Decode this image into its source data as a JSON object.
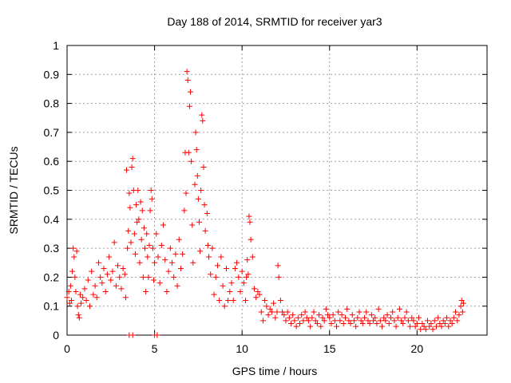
{
  "chart_data": {
    "type": "scatter",
    "title": "Day 188 of 2014, SRMTID for receiver yar3",
    "xlabel": "GPS time / hours",
    "ylabel": "SRMTID / TECUs",
    "xlim": [
      0,
      24
    ],
    "ylim": [
      0,
      1
    ],
    "xticks": [
      0,
      5,
      10,
      15,
      20
    ],
    "xtick_labels": [
      "0",
      "5",
      "10",
      "15",
      "20"
    ],
    "yticks": [
      0,
      0.1,
      0.2,
      0.3,
      0.4,
      0.5,
      0.6,
      0.7,
      0.8,
      0.9,
      1
    ],
    "ytick_labels": [
      "0",
      "0.1",
      "0.2",
      "0.3",
      "0.4",
      "0.5",
      "0.6",
      "0.7",
      "0.8",
      "0.9",
      "1"
    ],
    "grid": true,
    "marker": "+",
    "color": "#ff0000",
    "series": [
      {
        "name": "SRMTID",
        "points": [
          [
            0.0,
            0.13
          ],
          [
            0.1,
            0.15
          ],
          [
            0.15,
            0.11
          ],
          [
            0.2,
            0.17
          ],
          [
            0.25,
            0.12
          ],
          [
            0.3,
            0.22
          ],
          [
            0.35,
            0.3
          ],
          [
            0.4,
            0.27
          ],
          [
            0.45,
            0.2
          ],
          [
            0.5,
            0.15
          ],
          [
            0.55,
            0.29
          ],
          [
            0.6,
            0.1
          ],
          [
            0.65,
            0.07
          ],
          [
            0.7,
            0.06
          ],
          [
            0.75,
            0.14
          ],
          [
            0.8,
            0.11
          ],
          [
            0.9,
            0.13
          ],
          [
            1.0,
            0.16
          ],
          [
            1.1,
            0.12
          ],
          [
            1.2,
            0.19
          ],
          [
            1.3,
            0.1
          ],
          [
            1.4,
            0.22
          ],
          [
            1.5,
            0.14
          ],
          [
            1.6,
            0.17
          ],
          [
            1.7,
            0.13
          ],
          [
            1.8,
            0.25
          ],
          [
            1.9,
            0.2
          ],
          [
            2.0,
            0.18
          ],
          [
            2.1,
            0.23
          ],
          [
            2.2,
            0.15
          ],
          [
            2.3,
            0.21
          ],
          [
            2.4,
            0.27
          ],
          [
            2.5,
            0.19
          ],
          [
            2.6,
            0.22
          ],
          [
            2.7,
            0.32
          ],
          [
            2.8,
            0.17
          ],
          [
            2.9,
            0.24
          ],
          [
            3.0,
            0.2
          ],
          [
            3.1,
            0.16
          ],
          [
            3.2,
            0.23
          ],
          [
            3.3,
            0.21
          ],
          [
            3.35,
            0.13
          ],
          [
            3.4,
            0.57
          ],
          [
            3.45,
            0.3
          ],
          [
            3.5,
            0.36
          ],
          [
            3.55,
            0.49
          ],
          [
            3.6,
            0.44
          ],
          [
            3.65,
            0.32
          ],
          [
            3.7,
            0.58
          ],
          [
            3.75,
            0.61
          ],
          [
            3.8,
            0.5
          ],
          [
            3.85,
            0.35
          ],
          [
            3.9,
            0.28
          ],
          [
            3.95,
            0.45
          ],
          [
            4.0,
            0.39
          ],
          [
            4.05,
            0.5
          ],
          [
            4.1,
            0.4
          ],
          [
            4.15,
            0.25
          ],
          [
            4.2,
            0.46
          ],
          [
            4.25,
            0.33
          ],
          [
            4.3,
            0.43
          ],
          [
            4.35,
            0.2
          ],
          [
            4.4,
            0.37
          ],
          [
            4.45,
            0.3
          ],
          [
            4.5,
            0.15
          ],
          [
            4.55,
            0.35
          ],
          [
            4.6,
            0.27
          ],
          [
            4.65,
            0.2
          ],
          [
            4.7,
            0.31
          ],
          [
            4.75,
            0.43
          ],
          [
            4.8,
            0.5
          ],
          [
            4.85,
            0.47
          ],
          [
            4.9,
            0.3
          ],
          [
            4.95,
            0.19
          ],
          [
            5.0,
            0.25
          ],
          [
            5.1,
            0.35
          ],
          [
            5.2,
            0.27
          ],
          [
            5.3,
            0.18
          ],
          [
            5.4,
            0.31
          ],
          [
            5.5,
            0.38
          ],
          [
            5.6,
            0.26
          ],
          [
            5.7,
            0.15
          ],
          [
            5.8,
            0.22
          ],
          [
            5.9,
            0.3
          ],
          [
            6.0,
            0.25
          ],
          [
            6.1,
            0.2
          ],
          [
            6.2,
            0.28
          ],
          [
            6.3,
            0.17
          ],
          [
            6.4,
            0.33
          ],
          [
            6.5,
            0.23
          ],
          [
            6.6,
            0.28
          ],
          [
            6.7,
            0.43
          ],
          [
            6.75,
            0.63
          ],
          [
            6.8,
            0.49
          ],
          [
            6.85,
            0.91
          ],
          [
            6.9,
            0.88
          ],
          [
            6.95,
            0.63
          ],
          [
            7.0,
            0.79
          ],
          [
            7.05,
            0.84
          ],
          [
            7.1,
            0.6
          ],
          [
            7.15,
            0.38
          ],
          [
            7.2,
            0.25
          ],
          [
            7.3,
            0.52
          ],
          [
            7.35,
            0.7
          ],
          [
            7.4,
            0.64
          ],
          [
            7.45,
            0.55
          ],
          [
            7.5,
            0.47
          ],
          [
            7.55,
            0.39
          ],
          [
            7.6,
            0.29
          ],
          [
            7.65,
            0.5
          ],
          [
            7.7,
            0.76
          ],
          [
            7.75,
            0.74
          ],
          [
            7.8,
            0.58
          ],
          [
            7.85,
            0.45
          ],
          [
            7.9,
            0.36
          ],
          [
            8.0,
            0.42
          ],
          [
            8.05,
            0.31
          ],
          [
            8.1,
            0.27
          ],
          [
            8.2,
            0.21
          ],
          [
            8.3,
            0.3
          ],
          [
            8.4,
            0.14
          ],
          [
            8.5,
            0.2
          ],
          [
            8.6,
            0.24
          ],
          [
            8.7,
            0.12
          ],
          [
            8.8,
            0.27
          ],
          [
            8.9,
            0.17
          ],
          [
            9.0,
            0.1
          ],
          [
            9.1,
            0.23
          ],
          [
            9.2,
            0.12
          ],
          [
            9.3,
            0.15
          ],
          [
            9.4,
            0.18
          ],
          [
            9.5,
            0.12
          ],
          [
            9.6,
            0.23
          ],
          [
            9.7,
            0.25
          ],
          [
            9.8,
            0.2
          ],
          [
            9.9,
            0.15
          ],
          [
            10.0,
            0.22
          ],
          [
            10.1,
            0.18
          ],
          [
            10.2,
            0.12
          ],
          [
            10.25,
            0.2
          ],
          [
            10.3,
            0.26
          ],
          [
            10.35,
            0.21
          ],
          [
            10.4,
            0.41
          ],
          [
            10.45,
            0.39
          ],
          [
            10.5,
            0.33
          ],
          [
            10.6,
            0.27
          ],
          [
            10.7,
            0.16
          ],
          [
            10.8,
            0.13
          ],
          [
            10.9,
            0.15
          ],
          [
            11.0,
            0.14
          ],
          [
            11.1,
            0.08
          ],
          [
            11.2,
            0.05
          ],
          [
            11.3,
            0.12
          ],
          [
            11.4,
            0.1
          ],
          [
            11.5,
            0.07
          ],
          [
            11.6,
            0.09
          ],
          [
            11.7,
            0.08
          ],
          [
            11.8,
            0.11
          ],
          [
            11.9,
            0.06
          ],
          [
            12.0,
            0.08
          ],
          [
            12.05,
            0.24
          ],
          [
            12.1,
            0.2
          ],
          [
            12.2,
            0.12
          ],
          [
            12.3,
            0.08
          ],
          [
            12.4,
            0.07
          ],
          [
            12.5,
            0.05
          ],
          [
            12.6,
            0.08
          ],
          [
            12.7,
            0.06
          ],
          [
            12.8,
            0.04
          ],
          [
            12.9,
            0.07
          ],
          [
            13.0,
            0.05
          ],
          [
            13.1,
            0.03
          ],
          [
            13.2,
            0.06
          ],
          [
            13.3,
            0.04
          ],
          [
            13.4,
            0.07
          ],
          [
            13.5,
            0.05
          ],
          [
            13.6,
            0.08
          ],
          [
            13.7,
            0.06
          ],
          [
            13.8,
            0.05
          ],
          [
            13.9,
            0.03
          ],
          [
            14.0,
            0.06
          ],
          [
            14.1,
            0.08
          ],
          [
            14.2,
            0.05
          ],
          [
            14.3,
            0.04
          ],
          [
            14.4,
            0.07
          ],
          [
            14.5,
            0.03
          ],
          [
            14.6,
            0.06
          ],
          [
            14.7,
            0.05
          ],
          [
            14.8,
            0.09
          ],
          [
            14.9,
            0.07
          ],
          [
            15.0,
            0.06
          ],
          [
            15.1,
            0.04
          ],
          [
            15.2,
            0.07
          ],
          [
            15.3,
            0.05
          ],
          [
            15.4,
            0.03
          ],
          [
            15.5,
            0.08
          ],
          [
            15.6,
            0.05
          ],
          [
            15.7,
            0.07
          ],
          [
            15.8,
            0.04
          ],
          [
            15.9,
            0.06
          ],
          [
            16.0,
            0.09
          ],
          [
            16.1,
            0.05
          ],
          [
            16.2,
            0.04
          ],
          [
            16.3,
            0.07
          ],
          [
            16.4,
            0.05
          ],
          [
            16.5,
            0.03
          ],
          [
            16.6,
            0.06
          ],
          [
            16.7,
            0.08
          ],
          [
            16.8,
            0.05
          ],
          [
            16.9,
            0.04
          ],
          [
            17.0,
            0.06
          ],
          [
            17.1,
            0.08
          ],
          [
            17.2,
            0.05
          ],
          [
            17.3,
            0.04
          ],
          [
            17.4,
            0.07
          ],
          [
            17.5,
            0.05
          ],
          [
            17.6,
            0.06
          ],
          [
            17.7,
            0.04
          ],
          [
            17.8,
            0.09
          ],
          [
            17.9,
            0.05
          ],
          [
            18.0,
            0.03
          ],
          [
            18.1,
            0.06
          ],
          [
            18.2,
            0.05
          ],
          [
            18.3,
            0.07
          ],
          [
            18.4,
            0.04
          ],
          [
            18.5,
            0.06
          ],
          [
            18.6,
            0.08
          ],
          [
            18.7,
            0.05
          ],
          [
            18.8,
            0.03
          ],
          [
            18.9,
            0.06
          ],
          [
            19.0,
            0.09
          ],
          [
            19.1,
            0.05
          ],
          [
            19.2,
            0.04
          ],
          [
            19.3,
            0.06
          ],
          [
            19.4,
            0.08
          ],
          [
            19.5,
            0.05
          ],
          [
            19.6,
            0.03
          ],
          [
            19.7,
            0.06
          ],
          [
            19.8,
            0.05
          ],
          [
            19.9,
            0.03
          ],
          [
            20.0,
            0.04
          ],
          [
            20.1,
            0.06
          ],
          [
            20.2,
            0.02
          ],
          [
            20.3,
            0.04
          ],
          [
            20.4,
            0.03
          ],
          [
            20.5,
            0.02
          ],
          [
            20.6,
            0.05
          ],
          [
            20.7,
            0.03
          ],
          [
            20.8,
            0.04
          ],
          [
            20.9,
            0.02
          ],
          [
            21.0,
            0.05
          ],
          [
            21.1,
            0.03
          ],
          [
            21.2,
            0.06
          ],
          [
            21.3,
            0.04
          ],
          [
            21.4,
            0.03
          ],
          [
            21.5,
            0.05
          ],
          [
            21.6,
            0.04
          ],
          [
            21.7,
            0.06
          ],
          [
            21.8,
            0.03
          ],
          [
            21.9,
            0.05
          ],
          [
            22.0,
            0.04
          ],
          [
            22.1,
            0.06
          ],
          [
            22.2,
            0.08
          ],
          [
            22.3,
            0.05
          ],
          [
            22.4,
            0.07
          ],
          [
            22.5,
            0.1
          ],
          [
            22.55,
            0.12
          ],
          [
            22.6,
            0.08
          ],
          [
            22.65,
            0.11
          ]
        ],
        "zero_points": [
          [
            3.55,
            0
          ],
          [
            3.75,
            0
          ],
          [
            5.0,
            0
          ],
          [
            5.15,
            0
          ]
        ]
      }
    ]
  }
}
